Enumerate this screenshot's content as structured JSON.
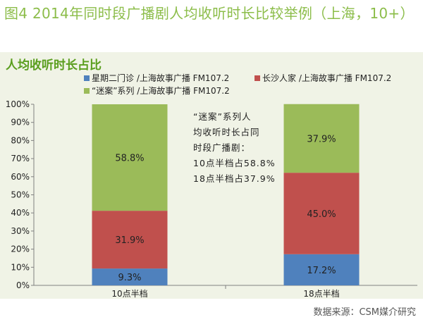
{
  "figure": {
    "title": "图4 2014年同时段广播剧人均收听时长比较举例（上海，10+）",
    "source": "数据来源：CSM媒介研究"
  },
  "chart_data": {
    "type": "bar",
    "stacked": true,
    "title": "人均收听时长占比",
    "categories": [
      "10点半档",
      "18点半档"
    ],
    "series": [
      {
        "name": "星期二门诊 /上海故事广播 FM107.2",
        "values": [
          9.3,
          17.2
        ],
        "labels": [
          "9.3%",
          "17.2%"
        ],
        "color": "#4f81bd"
      },
      {
        "name": "长沙人家 /上海故事广播 FM107.2",
        "values": [
          31.9,
          45.0
        ],
        "labels": [
          "31.9%",
          "45.0%"
        ],
        "color": "#c0504d"
      },
      {
        "name": "“迷案”系列 /上海故事广播 FM107.2",
        "values": [
          58.8,
          37.9
        ],
        "labels": [
          "58.8%",
          "37.9%"
        ],
        "color": "#9bbb59"
      }
    ],
    "ylim": [
      0,
      100
    ],
    "yticks": [
      "0%",
      "10%",
      "20%",
      "30%",
      "40%",
      "50%",
      "60%",
      "70%",
      "80%",
      "90%",
      "100%"
    ],
    "grid": false,
    "legend": "top",
    "annotation": [
      "“迷案”系列人",
      "均收听时长占同",
      "时段广播剧：",
      "10点半档占58.8%",
      "18点半档占37.9%"
    ]
  }
}
